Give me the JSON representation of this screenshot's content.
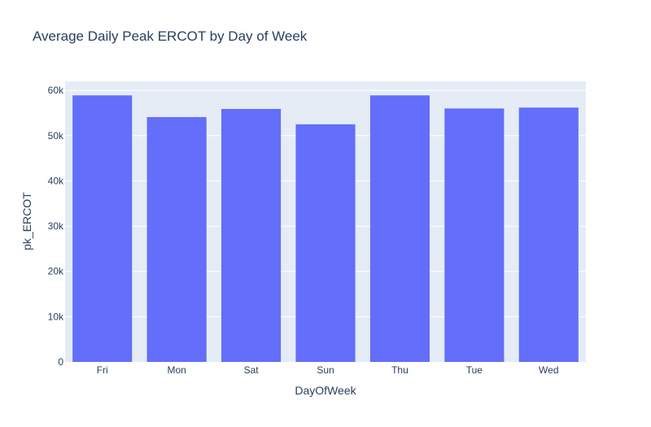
{
  "chart_data": {
    "type": "bar",
    "title": "Average Daily Peak ERCOT by Day of Week",
    "xlabel": "DayOfWeek",
    "ylabel": "pk_ERCOT",
    "categories": [
      "Fri",
      "Mon",
      "Sat",
      "Sun",
      "Thu",
      "Tue",
      "Wed"
    ],
    "values": [
      58900,
      54100,
      55900,
      52500,
      58900,
      56000,
      56200
    ],
    "ylim": [
      0,
      62000
    ],
    "yticks": [
      0,
      10000,
      20000,
      30000,
      40000,
      50000,
      60000
    ],
    "ytick_labels": [
      "0",
      "10k",
      "20k",
      "30k",
      "40k",
      "50k",
      "60k"
    ],
    "grid": true,
    "colors": {
      "bar": "#636efa",
      "plot_bg": "#e5ecf6",
      "grid": "#ffffff",
      "text": "#2a3f5f"
    }
  }
}
